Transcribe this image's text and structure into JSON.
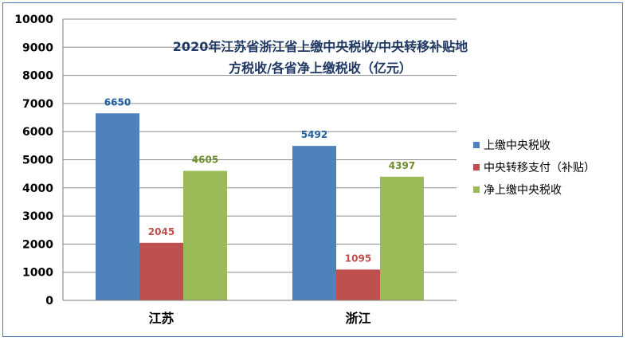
{
  "chart_data": {
    "type": "bar",
    "title_lines": [
      "2020年江苏省浙江省上缴中央税收/中央转移补贴地",
      "方税收/各省净上缴税收（亿元）"
    ],
    "categories": [
      "江苏",
      "浙江"
    ],
    "series": [
      {
        "name": "上缴中央税收",
        "values": [
          6650,
          5492
        ],
        "color": "#4f81bd"
      },
      {
        "name": "中央转移支付（补贴）",
        "values": [
          2045,
          1095
        ],
        "color": "#c0504d"
      },
      {
        "name": "净上缴中央税收",
        "values": [
          4605,
          4397
        ],
        "color": "#9bbb59"
      }
    ],
    "ylim": [
      0,
      10000
    ],
    "yticks": [
      0,
      1000,
      2000,
      3000,
      4000,
      5000,
      6000,
      7000,
      8000,
      9000,
      10000
    ],
    "grid": true,
    "legend_position": "right",
    "data_label_colors": [
      "#1f5fa0",
      "#c0504d",
      "#6f8f2a"
    ]
  }
}
